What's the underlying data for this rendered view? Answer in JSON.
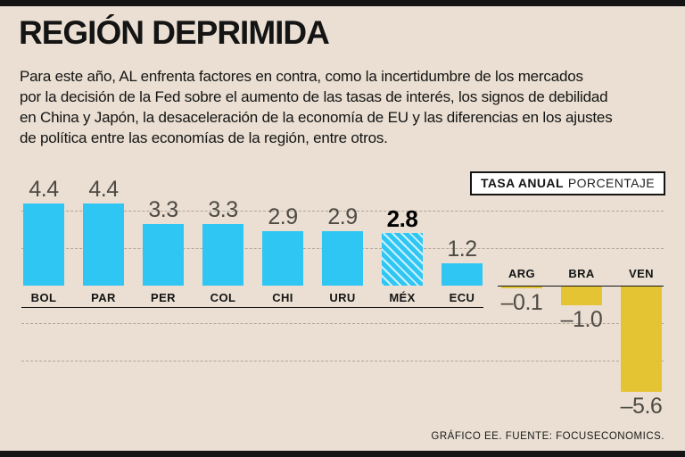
{
  "page": {
    "title": "REGIÓN DEPRIMIDA",
    "description": "Para este año, AL enfrenta factores en contra, como la incertidumbre de los mercados por la decisión de la Fed sobre el aumento de las tasas de interés, los signos de debilidad en China y Japón, la desaceleración de la economía de EU y las diferencias en los ajustes de política entre las economías de la región, entre otros.",
    "description_lines": [
      "Para este año, AL enfrenta factores en contra, como la incertidumbre de los mercados",
      "por la decisión de la Fed sobre el aumento de las tasas de interés, los signos de debilidad",
      "en China y Japón, la desaceleración de la economía de EU y las diferencias en los ajustes",
      "de política entre las economías de la región, entre otros."
    ],
    "credit": "GRÁFICO EE. FUENTE: FOCUSECONOMICS."
  },
  "legend": {
    "bold": "TASA ANUAL",
    "regular": "PORCENTAJE"
  },
  "colors": {
    "background": "#eadfd2",
    "positive_bar": "#30c6f4",
    "negative_bar": "#e5c433",
    "ink": "#141414"
  },
  "chart_data": {
    "type": "bar",
    "title": "REGIÓN DEPRIMIDA",
    "subtitle": "TASA ANUAL, PORCENTAJE",
    "categories": [
      "BOL",
      "PAR",
      "PER",
      "COL",
      "CHI",
      "URU",
      "MÉX",
      "ECU",
      "ARG",
      "BRA",
      "VEN"
    ],
    "values": [
      4.4,
      4.4,
      3.3,
      3.3,
      2.9,
      2.9,
      2.8,
      1.2,
      -0.1,
      -1.0,
      -5.6
    ],
    "value_labels": [
      "4.4",
      "4.4",
      "3.3",
      "3.3",
      "2.9",
      "2.9",
      "2.8",
      "1.2",
      "–0.1",
      "–1.0",
      "–5.6"
    ],
    "highlight_category": "MÉX",
    "ylim": [
      -6,
      5
    ],
    "gridline_values": [
      4,
      2,
      -2,
      -4
    ],
    "grid": "dashed-horizontal",
    "baseline": 0,
    "legend_position": "top-right"
  }
}
